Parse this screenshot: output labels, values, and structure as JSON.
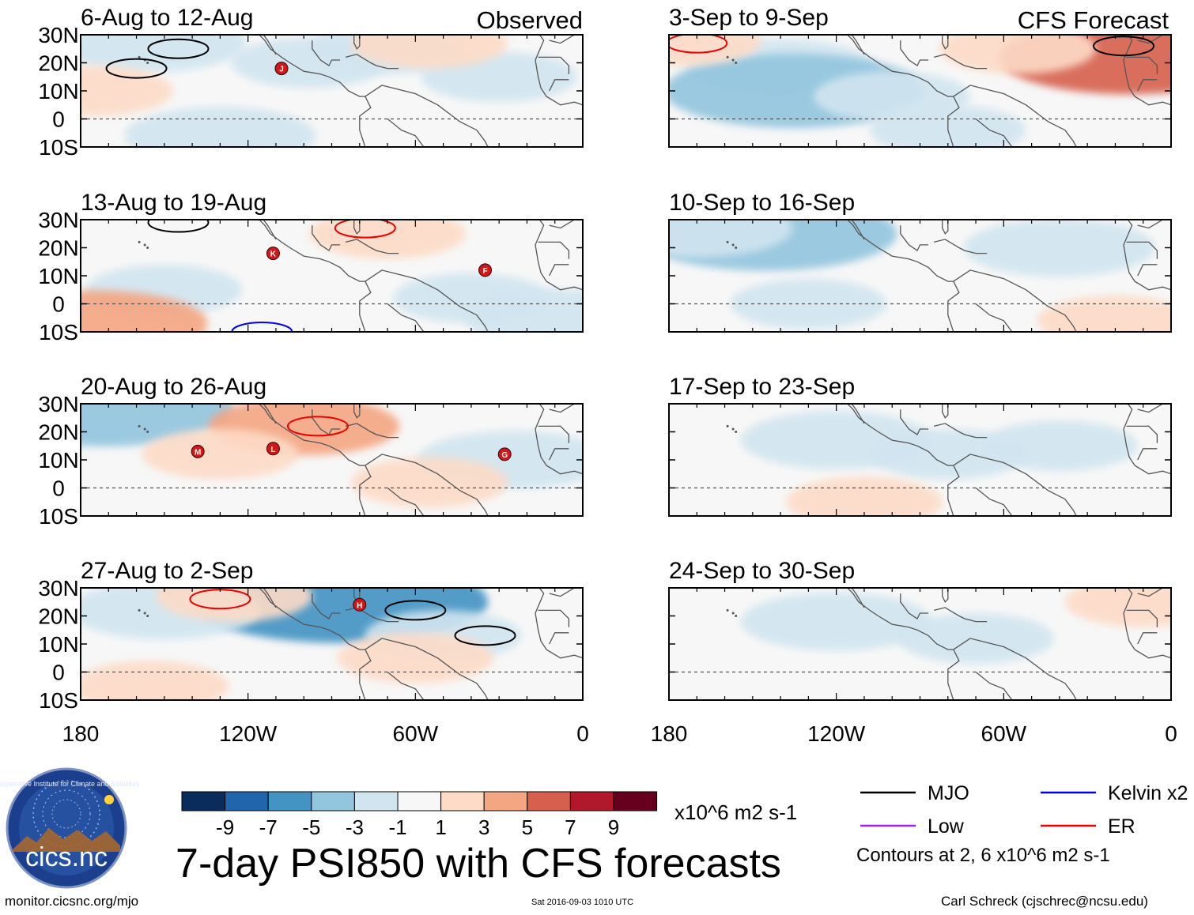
{
  "figure": {
    "title": "7-day PSI850 with CFS forecasts",
    "observed_label": "Observed",
    "forecast_label": "CFS Forecast",
    "units": "x10^6 m2 s-1",
    "contour_note": "Contours at 2, 6 x10^6 m2 s-1",
    "logo_text": "cics.nc",
    "logo_ring_text": "Cooperative Institute for Climate and Satellites",
    "footer_url": "monitor.cicsnc.org/mjo",
    "footer_date": "Sat 2016-09-03 1010 UTC",
    "footer_author": "Carl Schreck (cjschrec@ncsu.edu)"
  },
  "colorbar": {
    "colors": [
      "#0a2c5c",
      "#2166ac",
      "#4393c3",
      "#92c5de",
      "#d1e5f0",
      "#f7f7f7",
      "#fddbc7",
      "#f4a582",
      "#d6604d",
      "#b2182b",
      "#67001f"
    ],
    "labels": [
      "-9",
      "-7",
      "-5",
      "-3",
      "-1",
      "1",
      "3",
      "5",
      "7",
      "9"
    ]
  },
  "legend": {
    "items": [
      {
        "label": "MJO",
        "color": "#000000"
      },
      {
        "label": "Kelvin x2",
        "color": "#0000ee"
      },
      {
        "label": "Low",
        "color": "#a020f0"
      },
      {
        "label": "ER",
        "color": "#ee0000"
      }
    ]
  },
  "chart_data": {
    "type": "heatmap",
    "variable": "7-day PSI850 anomaly",
    "xlim": [
      180,
      0
    ],
    "ylim": [
      -10,
      30
    ],
    "x_ticks": [
      {
        "value": 180,
        "label": "180"
      },
      {
        "value": 120,
        "label": "120W"
      },
      {
        "value": 60,
        "label": "60W"
      },
      {
        "value": 0,
        "label": "0"
      }
    ],
    "y_ticks": [
      {
        "value": 30,
        "label": "30N"
      },
      {
        "value": 20,
        "label": "20N"
      },
      {
        "value": 10,
        "label": "10N"
      },
      {
        "value": 0,
        "label": "0"
      },
      {
        "value": -10,
        "label": "10S"
      }
    ],
    "panels": [
      {
        "period": "6-Aug to 12-Aug",
        "source": "observed",
        "anomalies": [
          {
            "lon": 98,
            "lat": 20,
            "value": -2
          },
          {
            "lon": 70,
            "lat": 25,
            "value": -2
          },
          {
            "lon": 130,
            "lat": -6,
            "value": -3
          },
          {
            "lon": 155,
            "lat": 27,
            "value": -3
          },
          {
            "lon": 30,
            "lat": 15,
            "value": -2
          },
          {
            "lon": 55,
            "lat": 27,
            "value": 2
          },
          {
            "lon": 175,
            "lat": 10,
            "value": 2
          }
        ],
        "contours": [
          {
            "type": "MJO",
            "lon": 160,
            "lat": 18
          },
          {
            "type": "MJO",
            "lon": 145,
            "lat": 25
          }
        ],
        "storms": [
          {
            "label": "J",
            "lon": 108,
            "lat": 18
          }
        ]
      },
      {
        "period": "13-Aug to 19-Aug",
        "source": "observed",
        "anomalies": [
          {
            "lon": 150,
            "lat": 5,
            "value": -2
          },
          {
            "lon": 40,
            "lat": 2,
            "value": -2
          },
          {
            "lon": 8,
            "lat": -5,
            "value": -3
          },
          {
            "lon": 70,
            "lat": 25,
            "value": 2
          },
          {
            "lon": 175,
            "lat": -7,
            "value": 4
          }
        ],
        "contours": [
          {
            "type": "ER",
            "lon": 78,
            "lat": 27
          },
          {
            "type": "Kelvin x2",
            "lon": 115,
            "lat": -10
          },
          {
            "type": "MJO",
            "lon": 145,
            "lat": 29
          }
        ],
        "storms": [
          {
            "label": "K",
            "lon": 111,
            "lat": 18
          },
          {
            "label": "F",
            "lon": 35,
            "lat": 12
          }
        ]
      },
      {
        "period": "20-Aug to 26-Aug",
        "source": "observed",
        "anomalies": [
          {
            "lon": 172,
            "lat": 28,
            "value": -5
          },
          {
            "lon": 25,
            "lat": 10,
            "value": -3
          },
          {
            "lon": 100,
            "lat": 22,
            "value": 3
          },
          {
            "lon": 130,
            "lat": 12,
            "value": 2
          },
          {
            "lon": 55,
            "lat": 2,
            "value": 2
          }
        ],
        "contours": [
          {
            "type": "ER",
            "lon": 95,
            "lat": 22
          }
        ],
        "storms": [
          {
            "label": "M",
            "lon": 138,
            "lat": 13
          },
          {
            "label": "L",
            "lon": 111,
            "lat": 14
          },
          {
            "label": "G",
            "lon": 28,
            "lat": 12
          }
        ]
      },
      {
        "period": "27-Aug to 2-Sep",
        "source": "observed",
        "anomalies": [
          {
            "lon": 87,
            "lat": 25,
            "value": -6
          },
          {
            "lon": 150,
            "lat": 22,
            "value": -3
          },
          {
            "lon": 50,
            "lat": 13,
            "value": -2
          },
          {
            "lon": 155,
            "lat": -5,
            "value": 2
          },
          {
            "lon": 60,
            "lat": 5,
            "value": 2
          },
          {
            "lon": 125,
            "lat": 27,
            "value": 2
          }
        ],
        "contours": [
          {
            "type": "ER",
            "lon": 130,
            "lat": 26
          },
          {
            "type": "MJO",
            "lon": 60,
            "lat": 22
          },
          {
            "type": "MJO",
            "lon": 35,
            "lat": 13
          }
        ],
        "storms": [
          {
            "label": "H",
            "lon": 80,
            "lat": 24
          }
        ]
      },
      {
        "period": "3-Sep to 9-Sep",
        "source": "forecast",
        "anomalies": [
          {
            "lon": 140,
            "lat": 18,
            "value": -3
          },
          {
            "lon": 135,
            "lat": 10,
            "value": -5
          },
          {
            "lon": 100,
            "lat": 8,
            "value": -2
          },
          {
            "lon": 80,
            "lat": -4,
            "value": -2
          },
          {
            "lon": 15,
            "lat": 22,
            "value": 5
          },
          {
            "lon": 55,
            "lat": 25,
            "value": 2
          },
          {
            "lon": 175,
            "lat": 28,
            "value": 2
          }
        ],
        "contours": [
          {
            "type": "ER",
            "lon": 170,
            "lat": 27
          },
          {
            "type": "MJO",
            "lon": 17,
            "lat": 26
          }
        ],
        "storms": []
      },
      {
        "period": "10-Sep to 16-Sep",
        "source": "forecast",
        "anomalies": [
          {
            "lon": 145,
            "lat": 25,
            "value": -5
          },
          {
            "lon": 170,
            "lat": 27,
            "value": -3
          },
          {
            "lon": 40,
            "lat": 20,
            "value": -3
          },
          {
            "lon": 130,
            "lat": 0,
            "value": -2
          },
          {
            "lon": 20,
            "lat": -6,
            "value": 2
          }
        ],
        "contours": [],
        "storms": []
      },
      {
        "period": "17-Sep to 23-Sep",
        "source": "forecast",
        "anomalies": [
          {
            "lon": 120,
            "lat": 17,
            "value": -3
          },
          {
            "lon": 80,
            "lat": 12,
            "value": -2
          },
          {
            "lon": 40,
            "lat": 15,
            "value": -2
          },
          {
            "lon": 110,
            "lat": -5,
            "value": 2
          }
        ],
        "contours": [],
        "storms": []
      },
      {
        "period": "24-Sep to 30-Sep",
        "source": "forecast",
        "anomalies": [
          {
            "lon": 120,
            "lat": 18,
            "value": -3
          },
          {
            "lon": 70,
            "lat": 12,
            "value": -2
          },
          {
            "lon": 10,
            "lat": 25,
            "value": 2
          }
        ],
        "contours": [],
        "storms": []
      }
    ]
  }
}
